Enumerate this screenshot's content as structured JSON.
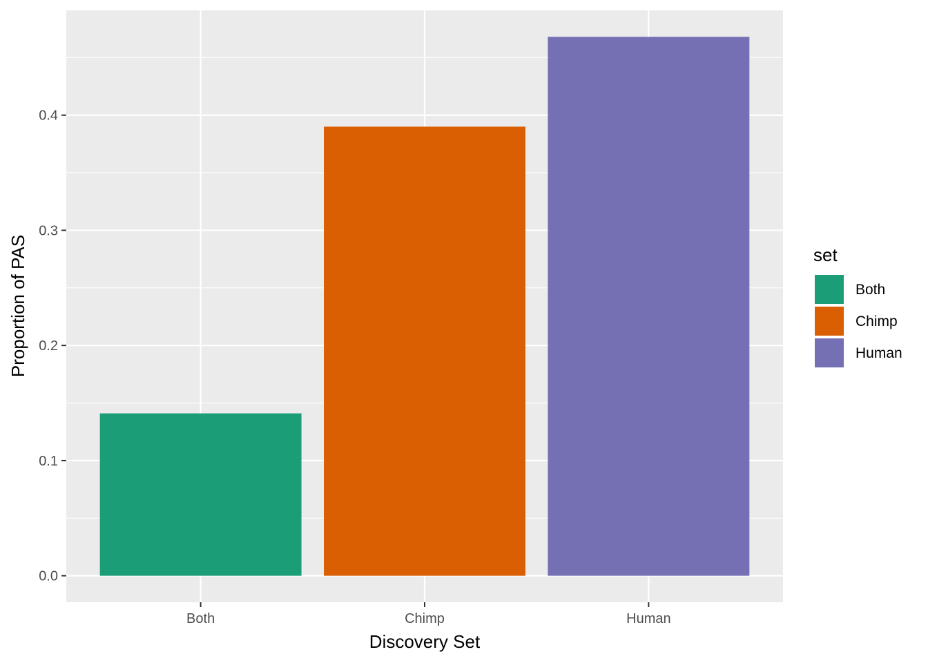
{
  "chart_data": {
    "type": "bar",
    "categories": [
      "Both",
      "Chimp",
      "Human"
    ],
    "values": [
      0.141,
      0.39,
      0.468
    ],
    "colors": [
      "#1b9e77",
      "#d95f02",
      "#7570b3"
    ],
    "xlabel": "Discovery Set",
    "ylabel": "Proportion of PAS",
    "ylim": [
      -0.023,
      0.491
    ],
    "yticks": [
      0.0,
      0.1,
      0.2,
      0.3,
      0.4
    ],
    "ytick_labels": [
      "0.0",
      "0.1",
      "0.2",
      "0.3",
      "0.4"
    ],
    "grid": true,
    "panel_background": "#ebebeb",
    "legend": {
      "title": "set",
      "position": "right",
      "entries": [
        "Both",
        "Chimp",
        "Human"
      ]
    }
  }
}
